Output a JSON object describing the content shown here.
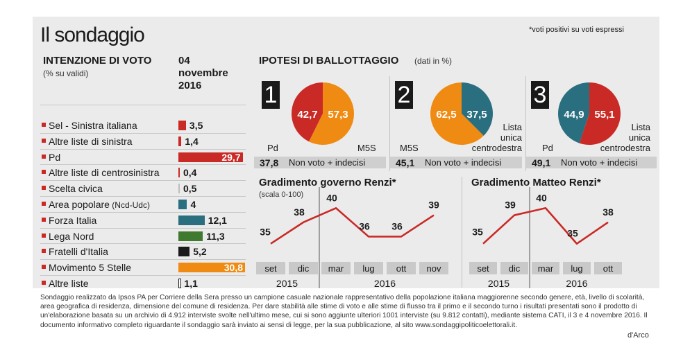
{
  "title": "Il sondaggio",
  "footnote": "*voti positivi su voti espressi",
  "voto": {
    "title": "INTENZIONE DI VOTO",
    "subtitle": "(% su validi)",
    "date_line1": "04",
    "date_line2": "novembre",
    "date_line3": "2016"
  },
  "ballottaggio": {
    "title": "IPOTESI  DI BALLOTTAGGIO",
    "subtitle": "(dati in %)",
    "nonvoto_label": "Non voto + indecisi"
  },
  "renzi_govt": {
    "title": "Gradimento governo Renzi*",
    "subtitle": "(scala 0-100)"
  },
  "renzi_matteo": {
    "title": "Gradimento Matteo Renzi*"
  },
  "notes": "Sondaggio realizzato da Ipsos PA per Corriere della Sera presso un campione casuale nazionale rappresentativo della popolazione italiana maggiorenne secondo genere, età, livello di scolarità, area geografica di residenza, dimensione del comune di residenza. Per dare stabilità alle stime di voto e alle stime di flusso tra il primo e il secondo turno i risultati presentati sono il prodotto di un'elaborazione basata su un archivio di 4.912 interviste svolte nell'ultimo mese, cui si sono aggiunte ulteriori 1001 interviste (su 9.812 contatti), mediante sistema CATI, il 3 e 4 novembre  2016. Il documento informativo completo riguardante il sondaggio sarà inviato ai sensi di legge, per la sua pubblicazione, al sito www.sondaggipoliticoelettorali.it.",
  "credit": "d'Arco",
  "chart_data": [
    {
      "type": "bar",
      "title": "INTENZIONE DI VOTO",
      "categories": [
        "Sel - Sinistra italiana",
        "Altre liste di sinistra",
        "Pd",
        "Altre liste di centrosinistra",
        "Scelta civica",
        "Area popolare",
        "Forza Italia",
        "Lega Nord",
        "Fratelli d'Italia",
        "Movimento 5 Stelle",
        "Altre liste"
      ],
      "category_notes": [
        "",
        "",
        "",
        "",
        "",
        "(Ncd-Udc)",
        "",
        "",
        "",
        "",
        ""
      ],
      "values": [
        3.5,
        1.4,
        29.7,
        0.4,
        0.5,
        4,
        12.1,
        11.3,
        5.2,
        30.8,
        1.1
      ],
      "value_labels": [
        "3,5",
        "1,4",
        "29,7",
        "0,4",
        "0,5",
        "4",
        "12,1",
        "11,3",
        "5,2",
        "30,8",
        "1,1"
      ],
      "colors": [
        "#c92a26",
        "#c92a26",
        "#c92a26",
        "#c92a26",
        "#bdbdbd",
        "#2a6f7f",
        "#2a6f7f",
        "#3f7a2e",
        "#1a1a1a",
        "#ef8b12",
        "#ffffff"
      ],
      "xlim": [
        0,
        30.8
      ]
    },
    {
      "type": "pie",
      "number": "1",
      "labels": [
        "Pd",
        "M5S"
      ],
      "values": [
        42.7,
        57.3
      ],
      "value_labels": [
        "42,7",
        "57,3"
      ],
      "colors": [
        "#c92a26",
        "#ef8b12"
      ],
      "nonvoto": "37,8"
    },
    {
      "type": "pie",
      "number": "2",
      "labels": [
        "M5S",
        "Lista unica centrodestra"
      ],
      "label_lines": [
        [
          "M5S"
        ],
        [
          "Lista",
          "unica",
          "centrodestra"
        ]
      ],
      "values": [
        62.5,
        37.5
      ],
      "value_labels": [
        "62,5",
        "37,5"
      ],
      "colors": [
        "#ef8b12",
        "#2a6f7f"
      ],
      "nonvoto": "45,1"
    },
    {
      "type": "pie",
      "number": "3",
      "labels": [
        "Pd",
        "Lista unica centrodestra"
      ],
      "label_lines": [
        [
          "Pd"
        ],
        [
          "Lista",
          "unica",
          "centrodestra"
        ]
      ],
      "values": [
        44.9,
        55.1
      ],
      "value_labels": [
        "44,9",
        "55,1"
      ],
      "colors": [
        "#2a6f7f",
        "#c92a26"
      ],
      "nonvoto": "49,1"
    },
    {
      "type": "line",
      "title": "Gradimento governo Renzi*",
      "categories": [
        "set",
        "dic",
        "mar",
        "lug",
        "ott",
        "nov"
      ],
      "values": [
        35,
        38,
        40,
        36,
        36,
        39
      ],
      "years": [
        {
          "label": "2015",
          "from": 0,
          "to": 1
        },
        {
          "label": "2016",
          "from": 2,
          "to": 5
        }
      ],
      "ylim": [
        34,
        41
      ],
      "color": "#c92a26"
    },
    {
      "type": "line",
      "title": "Gradimento Matteo Renzi*",
      "categories": [
        "set",
        "dic",
        "mar",
        "lug",
        "ott"
      ],
      "values": [
        35,
        39,
        40,
        35,
        38
      ],
      "years": [
        {
          "label": "2015",
          "from": 0,
          "to": 1
        },
        {
          "label": "2016",
          "from": 2,
          "to": 4
        }
      ],
      "ylim": [
        34,
        41
      ],
      "color": "#c92a26"
    }
  ]
}
